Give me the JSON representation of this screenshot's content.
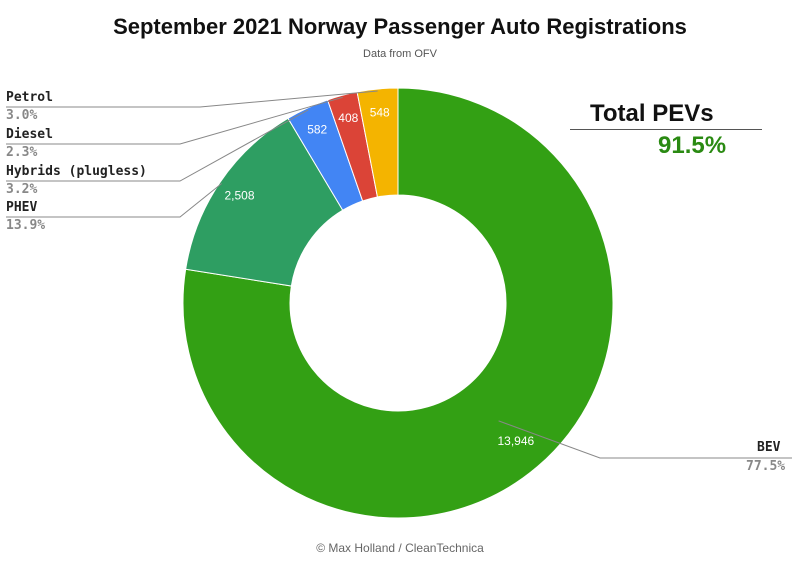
{
  "header": {
    "title": "September 2021 Norway Passenger Auto Registrations",
    "subtitle": "Data from OFV"
  },
  "summary": {
    "label": "Total PEVs",
    "value": "91.5%",
    "value_color": "#2a8a12"
  },
  "footer": {
    "credit": "© Max Holland / CleanTechnica"
  },
  "chart_data": {
    "type": "pie",
    "donut": true,
    "title": "September 2021 Norway Passenger Auto Registrations",
    "subtitle": "Data from OFV",
    "slices": [
      {
        "name": "BEV",
        "value": 13946,
        "label": "13,946",
        "percent": "77.5%",
        "color": "#33a014"
      },
      {
        "name": "PHEV",
        "value": 2508,
        "label": "2,508",
        "percent": "13.9%",
        "color": "#2e9e62"
      },
      {
        "name": "Hybrids (plugless)",
        "value": 582,
        "label": "582",
        "percent": "3.2%",
        "color": "#4285f4"
      },
      {
        "name": "Diesel",
        "value": 408,
        "label": "408",
        "percent": "2.3%",
        "color": "#db4437"
      },
      {
        "name": "Petrol",
        "value": 548,
        "label": "548",
        "percent": "3.0%",
        "color": "#f4b400"
      }
    ],
    "legend": "left and right, with leader lines"
  }
}
